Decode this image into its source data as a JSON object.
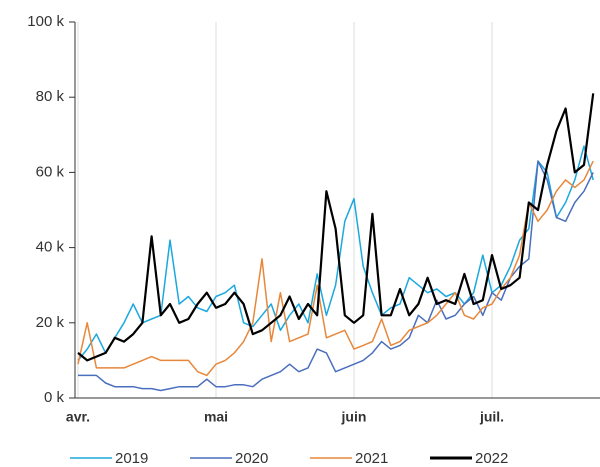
{
  "chart_data": {
    "type": "line",
    "categories": [
      "avr.",
      null,
      null,
      null,
      null,
      null,
      null,
      null,
      null,
      null,
      null,
      null,
      null,
      null,
      null,
      "mai",
      null,
      null,
      null,
      null,
      null,
      null,
      null,
      null,
      null,
      null,
      null,
      null,
      null,
      null,
      "juin",
      null,
      null,
      null,
      null,
      null,
      null,
      null,
      null,
      null,
      null,
      null,
      null,
      null,
      null,
      "juil.",
      null,
      null,
      null,
      null,
      null,
      null,
      null,
      null,
      null,
      null,
      null
    ],
    "series": [
      {
        "name": "2019",
        "color": "#1ba8de",
        "values": [
          10000,
          13000,
          17000,
          12000,
          16000,
          20000,
          25000,
          20000,
          21000,
          22000,
          42000,
          25000,
          27000,
          24000,
          23000,
          27000,
          28000,
          30000,
          20000,
          19000,
          22000,
          25000,
          18000,
          22000,
          25000,
          20000,
          33000,
          22000,
          30000,
          47000,
          53000,
          35000,
          28000,
          22000,
          24000,
          25000,
          32000,
          30000,
          28000,
          29000,
          27000,
          28000,
          25000,
          28000,
          38000,
          28000,
          30000,
          35000,
          42000,
          45000,
          63000,
          60000,
          48000,
          52000,
          58000,
          67000,
          58000
        ]
      },
      {
        "name": "2020",
        "color": "#4a6fbf",
        "values": [
          6000,
          6000,
          6000,
          4000,
          3000,
          3000,
          3000,
          2500,
          2500,
          2000,
          2500,
          3000,
          3000,
          3000,
          5000,
          3000,
          3000,
          3500,
          3500,
          3000,
          5000,
          6000,
          7000,
          9000,
          7000,
          8000,
          13000,
          12000,
          7000,
          8000,
          9000,
          10000,
          12000,
          15000,
          13000,
          14000,
          16000,
          22000,
          20000,
          26000,
          21000,
          22000,
          25000,
          27000,
          22000,
          28000,
          26000,
          32000,
          35000,
          37000,
          63000,
          58000,
          48000,
          47000,
          52000,
          55000,
          60000
        ]
      },
      {
        "name": "2021",
        "color": "#e8873a",
        "values": [
          9000,
          20000,
          8000,
          8000,
          8000,
          8000,
          9000,
          10000,
          11000,
          10000,
          10000,
          10000,
          10000,
          7000,
          6000,
          9000,
          10000,
          12000,
          15000,
          20000,
          37000,
          15000,
          28000,
          15000,
          16000,
          17000,
          30000,
          16000,
          17000,
          18000,
          13000,
          14000,
          15000,
          21000,
          14000,
          15000,
          18000,
          19000,
          20000,
          22000,
          25000,
          28000,
          22000,
          21000,
          24000,
          25000,
          29000,
          32000,
          38000,
          52000,
          47000,
          50000,
          55000,
          58000,
          56000,
          58000,
          63000
        ]
      },
      {
        "name": "2022",
        "color": "#000000",
        "values": [
          12000,
          10000,
          11000,
          12000,
          16000,
          15000,
          17000,
          20000,
          43000,
          22000,
          25000,
          20000,
          21000,
          25000,
          28000,
          24000,
          25000,
          28000,
          25000,
          17000,
          18000,
          20000,
          22000,
          27000,
          21000,
          25000,
          22000,
          55000,
          45000,
          22000,
          20000,
          22000,
          49000,
          22000,
          22000,
          29000,
          22000,
          25000,
          32000,
          25000,
          26000,
          25000,
          33000,
          25000,
          26000,
          38000,
          29000,
          30000,
          32000,
          52000,
          50000,
          62000,
          71000,
          77000,
          60000,
          62000,
          81000
        ]
      }
    ],
    "ylim": [
      0,
      100000
    ],
    "yticks": [
      {
        "value": 0,
        "label": "0 k"
      },
      {
        "value": 20000,
        "label": "20 k"
      },
      {
        "value": 40000,
        "label": "40 k"
      },
      {
        "value": 60000,
        "label": "60 k"
      },
      {
        "value": 80000,
        "label": "80 k"
      },
      {
        "value": 100000,
        "label": "100 k"
      }
    ],
    "grid": true,
    "legend": "bottom"
  }
}
